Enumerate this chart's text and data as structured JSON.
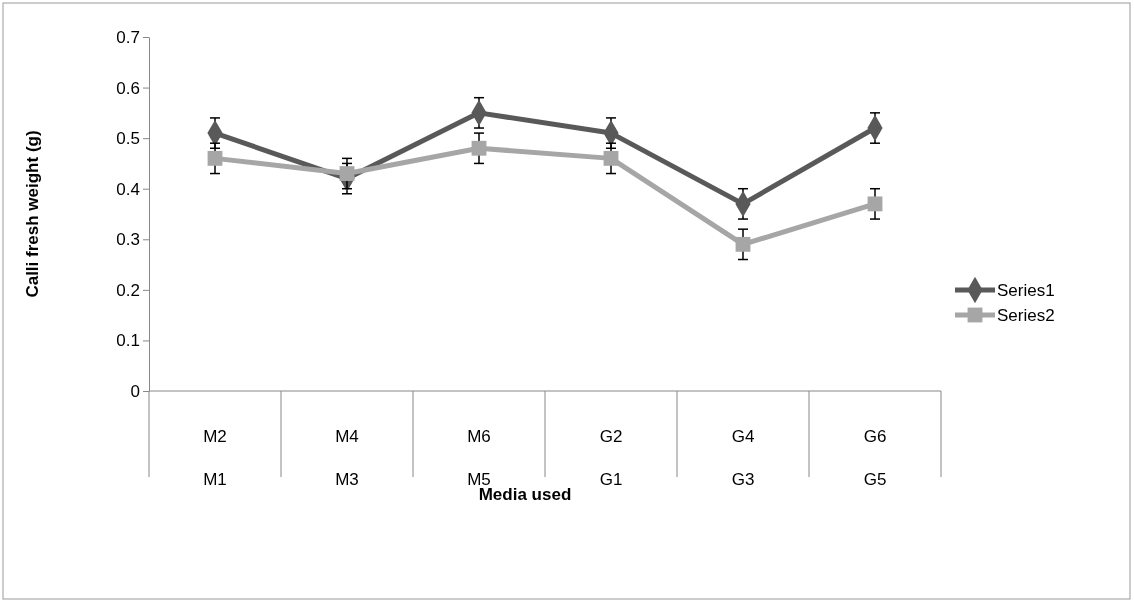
{
  "chart_data": {
    "type": "line",
    "xlabel": "Media used",
    "ylabel": "Calli fresh weight (g)",
    "categories": [
      "M2\nM1",
      "M4\nM3",
      "M6\nM5",
      "G2\nG1",
      "G4\nG3",
      "G6\nG5"
    ],
    "ylim": [
      0,
      0.7
    ],
    "yticks": [
      {
        "value": 0,
        "label": "0"
      },
      0.1,
      0.2,
      0.3,
      0.4,
      0.5,
      0.6,
      0.7
    ],
    "grid": false,
    "legend": "right",
    "series": [
      {
        "name": "Series1",
        "color": "#595959",
        "marker": "diamond",
        "values": [
          0.51,
          0.42,
          0.55,
          0.51,
          0.37,
          0.52
        ],
        "errors": [
          0.03,
          0.03,
          0.03,
          0.03,
          0.03,
          0.03
        ]
      },
      {
        "name": "Series2",
        "color": "#a6a6a6",
        "marker": "square",
        "values": [
          0.46,
          0.43,
          0.48,
          0.46,
          0.29,
          0.37
        ],
        "errors": [
          0.03,
          0.03,
          0.03,
          0.03,
          0.03,
          0.03
        ]
      }
    ]
  }
}
